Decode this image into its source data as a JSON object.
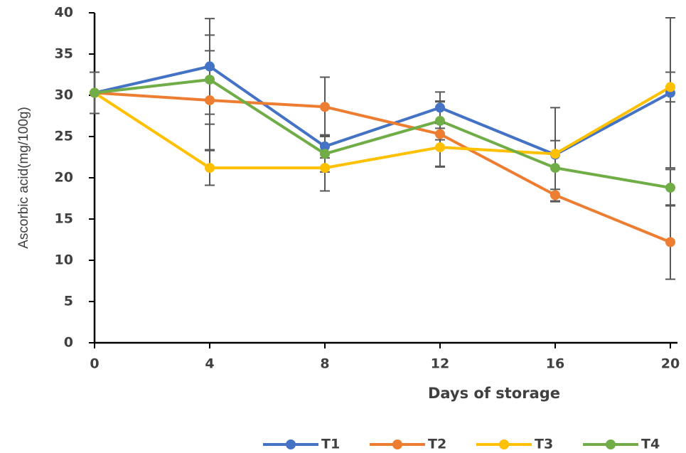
{
  "chart_data": {
    "type": "line",
    "x_label": "Days of storage",
    "y_label": "Ascorbic acid(mg/100g)",
    "x": [
      0,
      4,
      8,
      12,
      16,
      20
    ],
    "xlim": [
      0,
      20
    ],
    "xticks": [
      0,
      4,
      8,
      12,
      16,
      20
    ],
    "ylim": [
      0,
      40
    ],
    "yticks": [
      0,
      5,
      10,
      15,
      20,
      25,
      30,
      35,
      40
    ],
    "series": [
      {
        "name": "T1",
        "color": "#4472c4",
        "values": [
          30.3,
          33.5,
          23.8,
          28.5,
          22.8,
          30.3
        ],
        "errors": [
          2.5,
          5.8,
          1.4,
          1.9,
          5.7,
          9.1
        ]
      },
      {
        "name": "T2",
        "color": "#ed7d31",
        "values": [
          30.3,
          29.4,
          28.6,
          25.3,
          17.9,
          12.2
        ],
        "errors": [
          null,
          6.0,
          3.6,
          4.0,
          0.7,
          4.5
        ]
      },
      {
        "name": "T3",
        "color": "#ffc000",
        "values": [
          30.3,
          21.2,
          21.2,
          23.7,
          22.9,
          31.0
        ],
        "errors": [
          null,
          2.1,
          2.8,
          2.3,
          null,
          1.8
        ]
      },
      {
        "name": "T4",
        "color": "#70ad47",
        "values": [
          30.3,
          31.9,
          22.9,
          26.9,
          21.2,
          18.8
        ],
        "errors": [
          null,
          5.4,
          2.2,
          2.3,
          3.3,
          2.2
        ]
      }
    ]
  }
}
